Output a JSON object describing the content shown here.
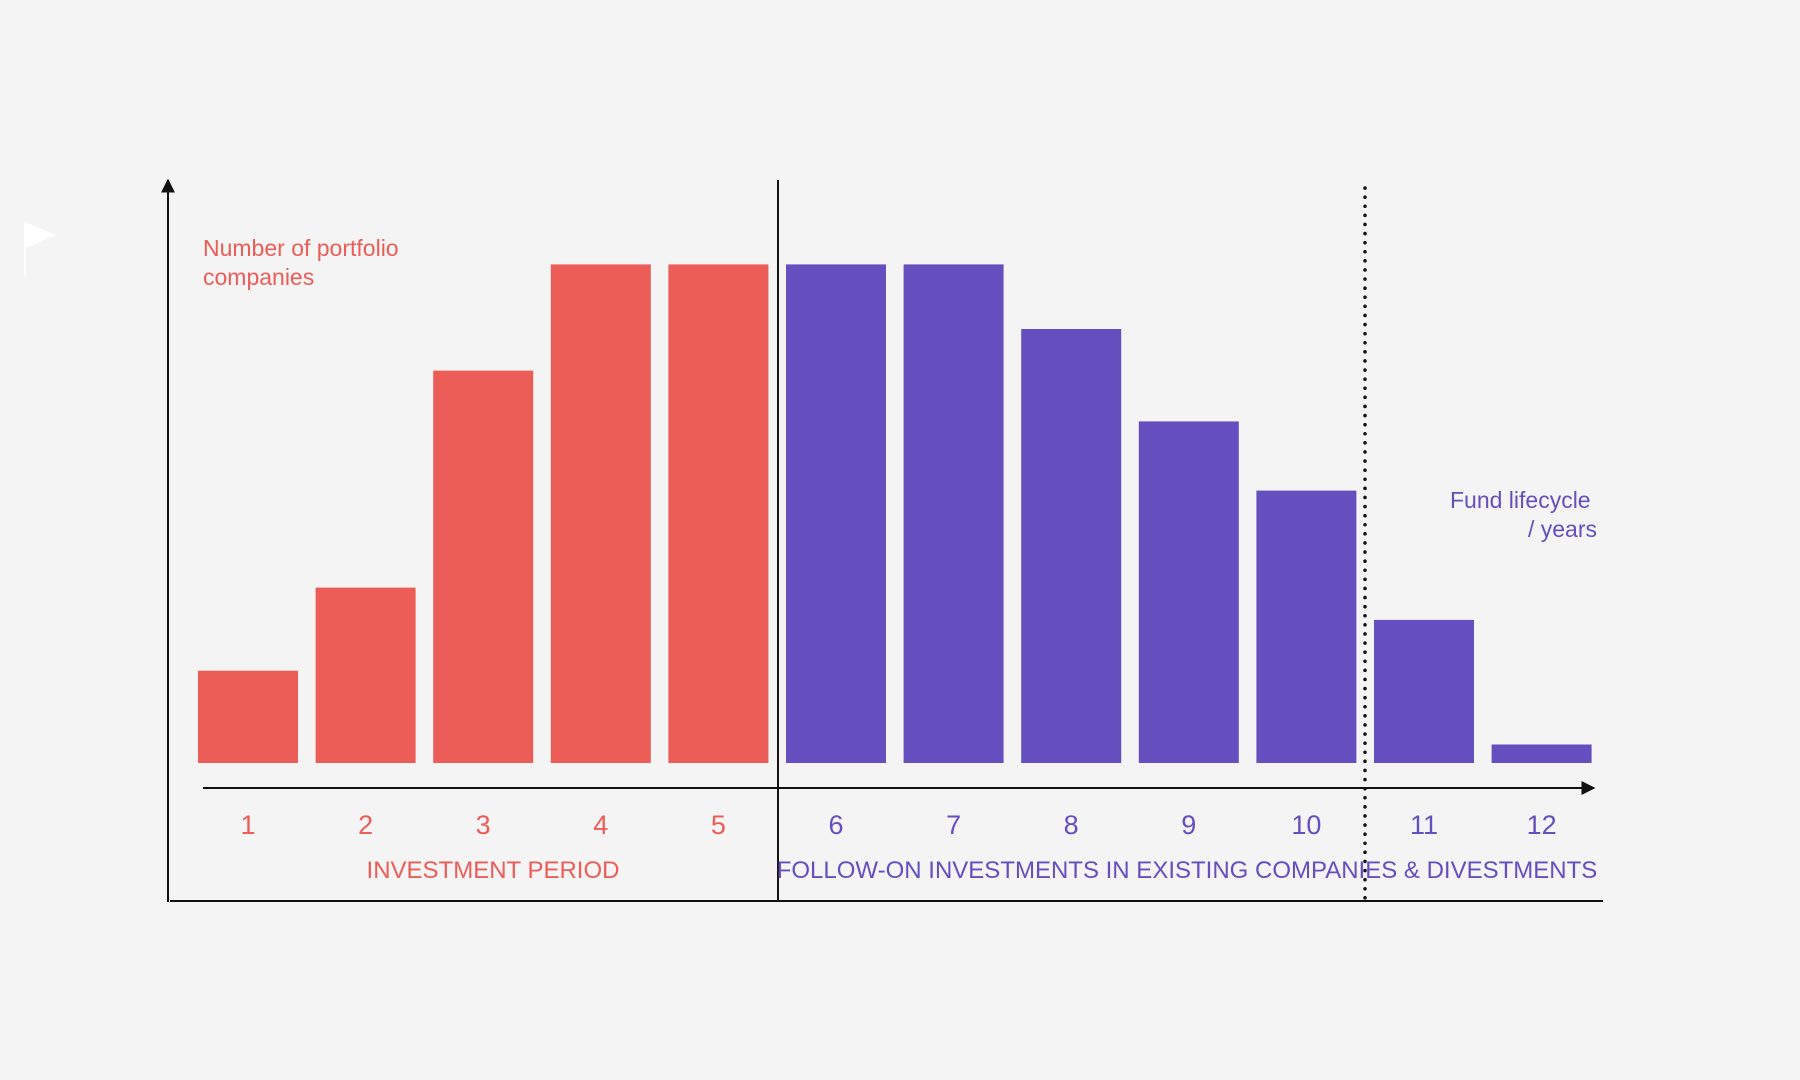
{
  "chart_data": {
    "type": "bar",
    "categories": [
      "1",
      "2",
      "3",
      "4",
      "5",
      "6",
      "7",
      "8",
      "9",
      "10",
      "11",
      "12"
    ],
    "values": [
      10,
      19,
      42.5,
      54,
      54,
      54,
      54,
      47,
      37,
      29.5,
      15.5,
      2
    ],
    "ylim": [
      0,
      60
    ],
    "ylabel": "Number of portfolio companies",
    "xlabel": "Fund lifecycle / years",
    "grid": false,
    "phases": [
      {
        "name": "INVESTMENT PERIOD",
        "categories": [
          "1",
          "2",
          "3",
          "4",
          "5"
        ],
        "color": "#ec5d58"
      },
      {
        "name": "FOLLOW-ON INVESTMENTS IN EXISTING COMPANIES & DIVESTMENTS",
        "categories": [
          "6",
          "7",
          "8",
          "9",
          "10",
          "11",
          "12"
        ],
        "color": "#654fbf"
      }
    ],
    "annotations": [
      "dotted line between year 10 and year 11"
    ]
  },
  "labels": {
    "ylabel_lines": [
      "Number of portfolio",
      "companies"
    ],
    "xlabel_lines": [
      "Fund lifecycle",
      "/ years"
    ]
  },
  "colors": {
    "investment": "#ec5d58",
    "followon": "#654fbf",
    "axis": "#111111",
    "background": "#f4f4f4"
  },
  "icons": {
    "flag": "flag-icon"
  }
}
